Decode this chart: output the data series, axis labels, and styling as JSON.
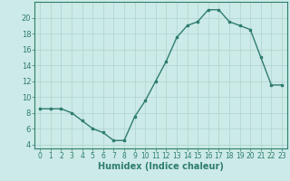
{
  "x": [
    0,
    1,
    2,
    3,
    4,
    5,
    6,
    7,
    8,
    9,
    10,
    11,
    12,
    13,
    14,
    15,
    16,
    17,
    18,
    19,
    20,
    21,
    22,
    23
  ],
  "y": [
    8.5,
    8.5,
    8.5,
    8.0,
    7.0,
    6.0,
    5.5,
    4.5,
    4.5,
    7.5,
    9.5,
    12.0,
    14.5,
    17.5,
    19.0,
    19.5,
    21.0,
    21.0,
    19.5,
    19.0,
    18.5,
    15.0,
    11.5,
    11.5
  ],
  "line_color": "#2e7d6e",
  "marker": "s",
  "marker_size": 2,
  "line_width": 1.0,
  "bg_color": "#cceae7",
  "grid_color": "#aed4d0",
  "xlabel": "Humidex (Indice chaleur)",
  "xlabel_fontsize": 7,
  "tick_fontsize": 6,
  "ylim": [
    3.5,
    22
  ],
  "yticks": [
    4,
    6,
    8,
    10,
    12,
    14,
    16,
    18,
    20
  ],
  "xlim": [
    -0.5,
    23.5
  ],
  "xticks": [
    0,
    1,
    2,
    3,
    4,
    5,
    6,
    7,
    8,
    9,
    10,
    11,
    12,
    13,
    14,
    15,
    16,
    17,
    18,
    19,
    20,
    21,
    22,
    23
  ]
}
